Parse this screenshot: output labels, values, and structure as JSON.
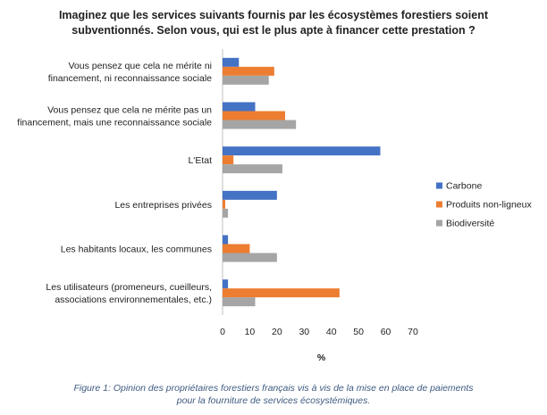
{
  "chart_data": {
    "type": "bar",
    "orientation": "horizontal",
    "title": [
      "Imaginez que les services suivants fournis par les écosystèmes forestiers soient",
      "subventionnés. Selon vous, qui est le plus apte à financer cette prestation ?"
    ],
    "categories": [
      [
        "Vous pensez que cela ne mérite ni",
        "financement, ni reconnaissance sociale"
      ],
      [
        "Vous pensez que cela ne mérite pas un",
        "financement, mais une reconnaissance sociale"
      ],
      [
        "L'Etat"
      ],
      [
        "Les entreprises privées"
      ],
      [
        "Les habitants locaux, les communes"
      ],
      [
        "Les utilisateurs (promeneurs, cueilleurs,",
        "associations environnementales, etc.)"
      ]
    ],
    "series": [
      {
        "name": "Carbone",
        "color": "#4472C4",
        "values": [
          6,
          12,
          58,
          20,
          2,
          2
        ]
      },
      {
        "name": "Produits non-ligneux",
        "color": "#ED7D31",
        "values": [
          19,
          23,
          4,
          1,
          10,
          43
        ]
      },
      {
        "name": "Biodiversité",
        "color": "#A5A5A5",
        "values": [
          17,
          27,
          22,
          2,
          20,
          12
        ]
      }
    ],
    "xlabel": "%",
    "xlim": [
      0,
      70
    ],
    "xticks": [
      0,
      10,
      20,
      30,
      40,
      50,
      60,
      70
    ],
    "grid": false,
    "legend_position": "right"
  },
  "caption": [
    "Figure 1: Opinion des propriétaires forestiers français vis à vis de la mise en place de paiements",
    "pour la fourniture de services écosystémiques."
  ]
}
